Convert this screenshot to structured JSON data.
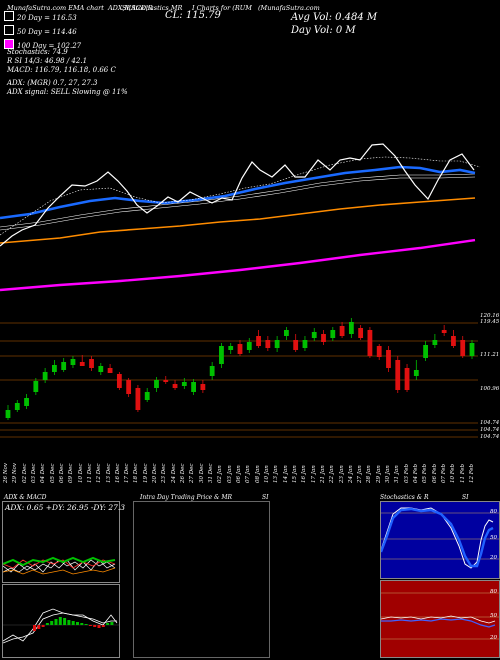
{
  "header": {
    "text1": "MunafaSutra.com",
    "text2": "EMA chart",
    "text3": "ADX,MACD,R",
    "text4": "SI,Stochastics,MR",
    "text5": "I Charts for (RUM",
    "text6": "(MunafaSutra.com",
    "cl": "CL: 115.79",
    "avg_vol": "Avg Vol: 0.484  M",
    "day_vol": "Day Vol: 0   M"
  },
  "legend": [
    {
      "label": "20 Day  = 116.53",
      "color": "#ffffff"
    },
    {
      "label": "50 Day  = 114.46",
      "color": "#ffffff"
    },
    {
      "label": "100 Day  = 102.27",
      "color": "#ff00ff"
    }
  ],
  "indicators": {
    "stochastics": "Stochastics: 74.9",
    "rsi": "R          SI 14/3: 46.98 / 42.1",
    "macd": "MACD: 116.79, 116.18, 0.66  C",
    "adx": "ADX:                     (MGR) 0.7,  27,  27.3",
    "adx_signal": "ADX  signal: SELL  Slowing @ 11%"
  },
  "price_axis": [
    "120.16",
    "119.45",
    "111.21",
    "100.96",
    "104.74",
    "104.74",
    "104.74"
  ],
  "dates": [
    "26 Nov",
    "29 Nov",
    "02 Dec",
    "03 Dec",
    "04 Dec",
    "05 Dec",
    "06 Dec",
    "09 Dec",
    "10 Dec",
    "11 Dec",
    "12 Dec",
    "13 Dec",
    "16 Dec",
    "17 Dec",
    "18 Dec",
    "19 Dec",
    "20 Dec",
    "23 Dec",
    "24 Dec",
    "26 Dec",
    "27 Dec",
    "30 Dec",
    "31 Dec",
    "02 Jan",
    "03 Jan",
    "06 Jan",
    "07 Jan",
    "08 Jan",
    "10 Jan",
    "13 Jan",
    "14 Jan",
    "15 Jan",
    "16 Jan",
    "17 Jan",
    "21 Jan",
    "22 Jan",
    "23 Jan",
    "24 Jan",
    "27 Jan",
    "28 Jan",
    "29 Jan",
    "30 Jan",
    "31 Jan",
    "03 Feb",
    "04 Feb",
    "05 Feb",
    "06 Feb",
    "07 Feb",
    "10 Feb",
    "11 Feb",
    "12 Feb"
  ],
  "bottom_panels": {
    "adx_title": "ADX  & MACD",
    "adx_values": "ADX: 0.65  +DY: 26.95  -DY: 27.3",
    "intra_title": "Intra  Day Trading Price  & MR",
    "intra_si": "SI",
    "stoch_title": "Stochastics  & R",
    "stoch_si": "SI",
    "stoch_levels": [
      "80",
      "50",
      "20"
    ],
    "rsi_levels": [
      "80",
      "50",
      "20"
    ]
  },
  "colors": {
    "ema20": "#ffffff",
    "ema50": "#1060ff",
    "ema100": "#ff8c00",
    "ema200": "#ff00ff",
    "up": "#00c000",
    "down": "#e01010",
    "level_line": "#c06000",
    "stoch_bg": "#0000a0",
    "rsi_bg": "#a00000"
  }
}
